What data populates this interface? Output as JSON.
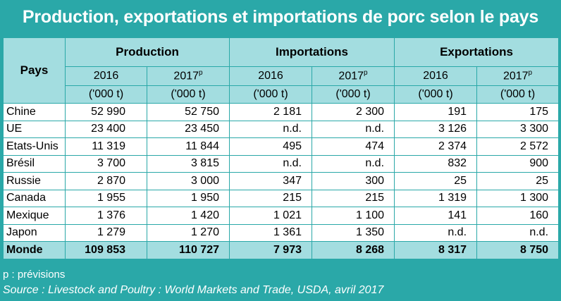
{
  "title": "Production, exportations et importations de porc selon le pays",
  "headers": {
    "pays": "Pays",
    "groups": [
      "Production",
      "Importations",
      "Exportations"
    ],
    "year_a": "2016",
    "year_b": "2017",
    "year_b_sup": "p",
    "unit": "('000 t)"
  },
  "rows": [
    {
      "pays": "Chine",
      "prod2016": "52 990",
      "prod2017": "52 750",
      "imp2016": "2 181",
      "imp2017": "2 300",
      "exp2016": "191",
      "exp2017": "175"
    },
    {
      "pays": "UE",
      "prod2016": "23 400",
      "prod2017": "23 450",
      "imp2016": "n.d.",
      "imp2017": "n.d.",
      "exp2016": "3 126",
      "exp2017": "3 300"
    },
    {
      "pays": "Etats-Unis",
      "prod2016": "11 319",
      "prod2017": "11 844",
      "imp2016": "495",
      "imp2017": "474",
      "exp2016": "2 374",
      "exp2017": "2 572"
    },
    {
      "pays": "Brésil",
      "prod2016": "3 700",
      "prod2017": "3 815",
      "imp2016": "n.d.",
      "imp2017": "n.d.",
      "exp2016": "832",
      "exp2017": "900"
    },
    {
      "pays": "Russie",
      "prod2016": "2 870",
      "prod2017": "3 000",
      "imp2016": "347",
      "imp2017": "300",
      "exp2016": "25",
      "exp2017": "25"
    },
    {
      "pays": "Canada",
      "prod2016": "1 955",
      "prod2017": "1 950",
      "imp2016": "215",
      "imp2017": "215",
      "exp2016": "1 319",
      "exp2017": "1 300"
    },
    {
      "pays": "Mexique",
      "prod2016": "1 376",
      "prod2017": "1 420",
      "imp2016": "1 021",
      "imp2017": "1 100",
      "exp2016": "141",
      "exp2017": "160"
    },
    {
      "pays": "Japon",
      "prod2016": "1 279",
      "prod2017": "1 270",
      "imp2016": "1 361",
      "imp2017": "1 350",
      "exp2016": "n.d.",
      "exp2017": "n.d."
    }
  ],
  "total": {
    "pays": "Monde",
    "prod2016": "109 853",
    "prod2017": "110 727",
    "imp2016": "7 973",
    "imp2017": "8 268",
    "exp2016": "8 317",
    "exp2017": "8 750"
  },
  "footnote": "p : prévisions",
  "source": "Source : Livestock and Poultry : World Markets and Trade, USDA, avril 2017",
  "colors": {
    "background": "#2aa8a8",
    "header_fill": "#a3dde0",
    "cell_fill": "#ffffff"
  }
}
